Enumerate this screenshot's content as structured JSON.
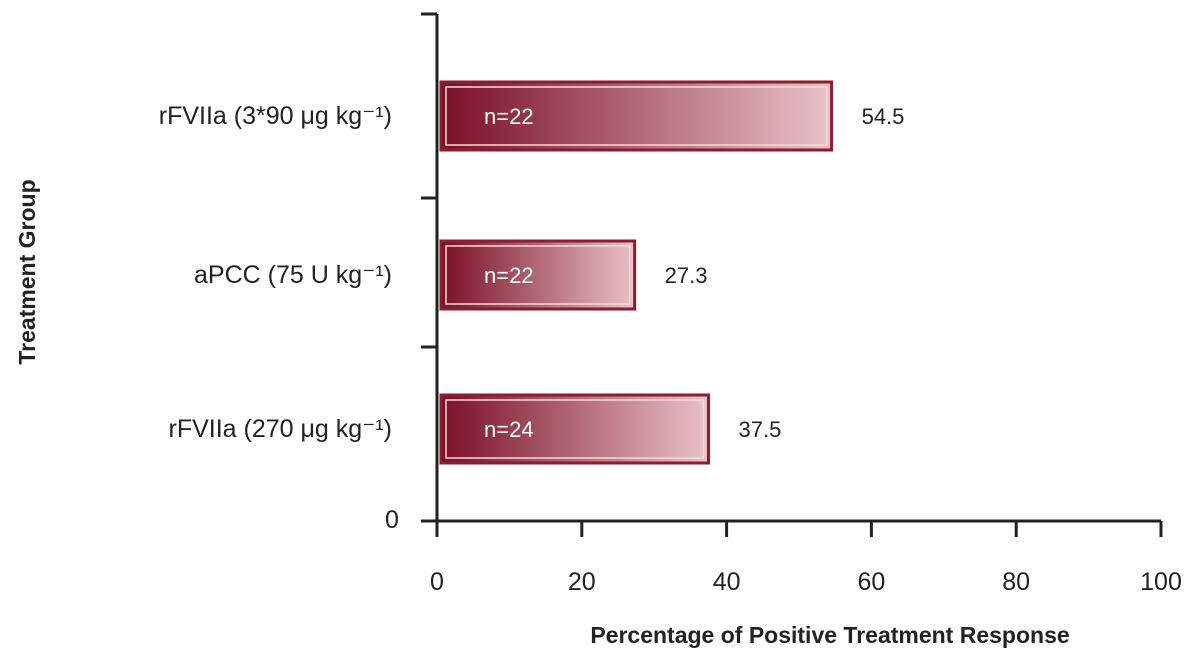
{
  "chart_data": {
    "type": "bar",
    "orientation": "horizontal",
    "categories": [
      "rFVIIa (3*90 μg kg⁻¹)",
      "aPCC (75 U kg⁻¹)",
      "rFVIIa (270 μg kg⁻¹)"
    ],
    "values": [
      54.5,
      27.3,
      37.5
    ],
    "value_labels": [
      "54.5",
      "27.3",
      "37.5"
    ],
    "n_labels": [
      "n=22",
      "n=22",
      "n=24"
    ],
    "xlabel": "Percentage of Positive Treatment Response",
    "ylabel": "Treatment Group",
    "xlim": [
      0,
      100
    ],
    "xticks": [
      "0",
      "20",
      "40",
      "60",
      "80",
      "100"
    ],
    "ytick_zero": "0",
    "grid": false,
    "legend": "none",
    "colors": {
      "bar_dark": "#7a0f25",
      "bar_light": "#e9c2c7",
      "bar_border": "#8c1c30"
    }
  }
}
